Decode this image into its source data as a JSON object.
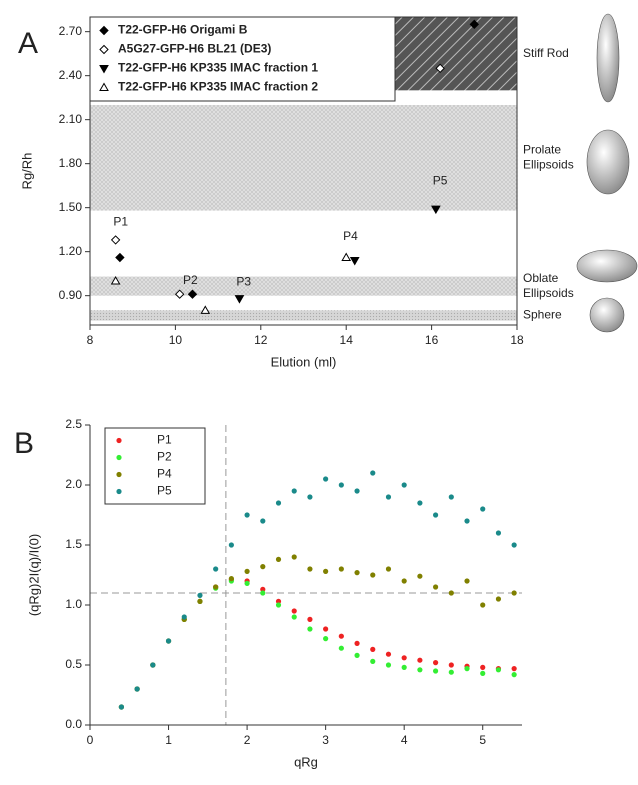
{
  "chart_data": [
    {
      "type": "scatter",
      "panel_label": "A",
      "xlabel": "Elution (ml)",
      "ylabel": "Rg/Rh",
      "xlim": [
        8,
        18
      ],
      "ylim": [
        0.7,
        2.8
      ],
      "xticks": [
        8,
        10,
        12,
        14,
        16,
        18
      ],
      "yticks": [
        {
          "value": 0.9,
          "label": "0.90"
        },
        {
          "value": 1.2,
          "label": "1.20"
        },
        {
          "value": 1.5,
          "label": "1.50"
        },
        {
          "value": 1.8,
          "label": "1.80"
        },
        {
          "value": 2.1,
          "label": "2.10"
        },
        {
          "value": 2.4,
          "label": "2.40"
        },
        {
          "value": 2.7,
          "label": "2.70"
        }
      ],
      "legend": "upper left",
      "regions": [
        {
          "label": [
            "Stiff Rod"
          ],
          "ymin": 2.3,
          "ymax": 2.8,
          "style": "hatch"
        },
        {
          "label": [
            "Prolate",
            "Ellipsoids"
          ],
          "ymin": 1.48,
          "ymax": 2.2,
          "style": "crosshatch"
        },
        {
          "label": [
            "Oblate",
            "Ellipsoids"
          ],
          "ymin": 0.9,
          "ymax": 1.03,
          "style": "crosshatch"
        },
        {
          "label": [
            "Sphere"
          ],
          "ymin": 0.73,
          "ymax": 0.8,
          "style": "dots"
        }
      ],
      "annotations": [
        "P1",
        "P2",
        "P3",
        "P4",
        "P5"
      ],
      "series": [
        {
          "name": "T22-GFP-H6 Origami B",
          "marker": "diamond",
          "filled": true,
          "color": "#000000",
          "x": [
            8.7,
            10.4,
            17.0
          ],
          "values": [
            1.16,
            0.91,
            2.75
          ]
        },
        {
          "name": "A5G27-GFP-H6 BL21 (DE3)",
          "marker": "diamond",
          "filled": false,
          "color": "#000000",
          "x": [
            8.6,
            10.1,
            16.2
          ],
          "values": [
            1.28,
            0.91,
            2.45
          ]
        },
        {
          "name": "T22-GFP-H6 KP335 IMAC fraction 1",
          "marker": "triangle-down",
          "filled": true,
          "color": "#000000",
          "x": [
            11.5,
            14.2,
            16.1
          ],
          "values": [
            0.88,
            1.14,
            1.49
          ]
        },
        {
          "name": "T22-GFP-H6 KP335 IMAC fraction 2",
          "marker": "triangle-up",
          "filled": false,
          "color": "#000000",
          "x": [
            8.6,
            10.7,
            14.0
          ],
          "values": [
            1.0,
            0.8,
            1.16
          ]
        }
      ]
    },
    {
      "type": "scatter",
      "panel_label": "B",
      "xlabel": "qRg",
      "ylabel": "(qRg)2I(q)/I(0)",
      "xlim": [
        0,
        5.5
      ],
      "ylim": [
        0,
        2.5
      ],
      "xticks": [
        0,
        1,
        2,
        3,
        4,
        5
      ],
      "yticks": [
        {
          "value": 0,
          "label": "0.0"
        },
        0.5,
        {
          "value": 1,
          "label": "1.0"
        },
        1.5,
        {
          "value": 2,
          "label": "2.0"
        },
        2.5
      ],
      "legend": "upper left",
      "reference_lines": {
        "x": 1.73,
        "y": 1.1
      },
      "x": [
        0.4,
        0.6,
        0.8,
        1.0,
        1.2,
        1.4,
        1.6,
        1.8,
        2.0,
        2.2,
        2.4,
        2.6,
        2.8,
        3.0,
        3.2,
        3.4,
        3.6,
        3.8,
        4.0,
        4.2,
        4.4,
        4.6,
        4.8,
        5.0,
        5.2,
        5.4
      ],
      "series": [
        {
          "name": "P1",
          "marker": "circle",
          "filled": true,
          "color": "#ee2222",
          "values": [
            0.15,
            0.3,
            0.5,
            0.7,
            0.88,
            1.03,
            1.15,
            1.21,
            1.2,
            1.13,
            1.03,
            0.95,
            0.88,
            0.8,
            0.74,
            0.68,
            0.63,
            0.59,
            0.56,
            0.54,
            0.52,
            0.5,
            0.49,
            0.48,
            0.47,
            0.47
          ]
        },
        {
          "name": "P2",
          "marker": "circle",
          "filled": true,
          "color": "#33ee33",
          "values": [
            0.15,
            0.3,
            0.5,
            0.7,
            0.88,
            1.03,
            1.14,
            1.2,
            1.18,
            1.1,
            1.0,
            0.9,
            0.8,
            0.72,
            0.64,
            0.58,
            0.53,
            0.5,
            0.48,
            0.46,
            0.45,
            0.44,
            0.47,
            0.43,
            0.46,
            0.42
          ]
        },
        {
          "name": "P4",
          "marker": "circle",
          "filled": true,
          "color": "#808000",
          "values": [
            0.15,
            0.3,
            0.5,
            0.7,
            0.88,
            1.03,
            1.15,
            1.22,
            1.28,
            1.32,
            1.38,
            1.4,
            1.3,
            1.28,
            1.3,
            1.27,
            1.25,
            1.3,
            1.2,
            1.24,
            1.15,
            1.1,
            1.2,
            1.0,
            1.05,
            1.1
          ]
        },
        {
          "name": "P5",
          "marker": "circle",
          "filled": true,
          "color": "#1a8a8a",
          "values": [
            0.15,
            0.3,
            0.5,
            0.7,
            0.9,
            1.08,
            1.3,
            1.5,
            1.75,
            1.7,
            1.85,
            1.95,
            1.9,
            2.05,
            2.0,
            1.95,
            2.1,
            1.9,
            2.0,
            1.85,
            1.75,
            1.9,
            1.7,
            1.8,
            1.6,
            1.5
          ]
        }
      ]
    }
  ]
}
